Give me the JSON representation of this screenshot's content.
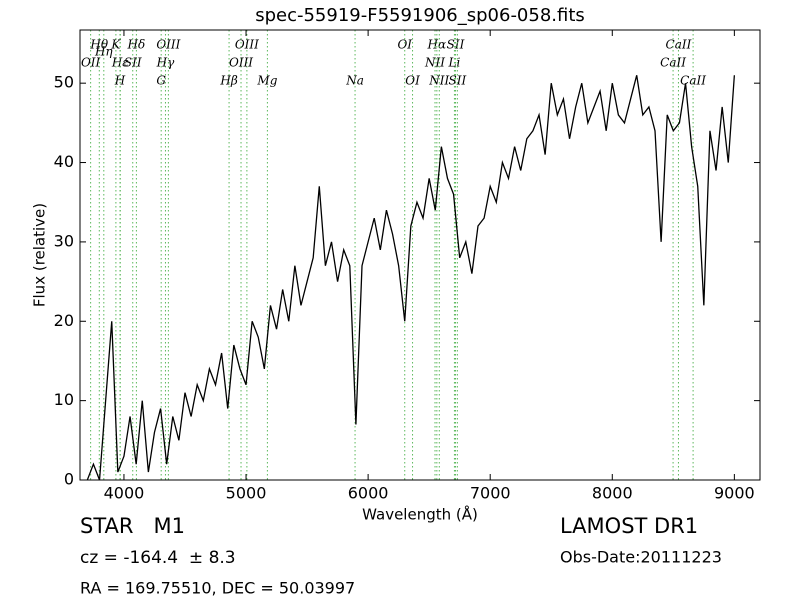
{
  "chart_data": {
    "type": "line",
    "title": "spec-55919-F5591906_sp06-058.fits",
    "x_label": "Wavelength (Å)",
    "y_label": "Flux (relative)",
    "xlim": [
      3640,
      9210
    ],
    "ylim": [
      0,
      56.7
    ],
    "xticks": [
      4000,
      5000,
      6000,
      7000,
      8000,
      9000
    ],
    "yticks": [
      0,
      10,
      20,
      30,
      40,
      50
    ],
    "x": [
      3700,
      3750,
      3800,
      3850,
      3900,
      3950,
      4000,
      4050,
      4100,
      4150,
      4200,
      4250,
      4300,
      4350,
      4400,
      4450,
      4500,
      4550,
      4600,
      4650,
      4700,
      4750,
      4800,
      4850,
      4900,
      4950,
      5000,
      5050,
      5100,
      5150,
      5200,
      5250,
      5300,
      5350,
      5400,
      5450,
      5500,
      5550,
      5600,
      5650,
      5700,
      5750,
      5800,
      5850,
      5900,
      5950,
      6000,
      6050,
      6100,
      6150,
      6200,
      6250,
      6300,
      6350,
      6400,
      6450,
      6500,
      6550,
      6600,
      6650,
      6700,
      6750,
      6800,
      6850,
      6900,
      6950,
      7000,
      7050,
      7100,
      7150,
      7200,
      7250,
      7300,
      7350,
      7400,
      7450,
      7500,
      7550,
      7600,
      7650,
      7700,
      7750,
      7800,
      7850,
      7900,
      7950,
      8000,
      8050,
      8100,
      8150,
      8200,
      8250,
      8300,
      8350,
      8400,
      8450,
      8500,
      8550,
      8600,
      8650,
      8700,
      8750,
      8800,
      8850,
      8900,
      8950,
      9000
    ],
    "series": [
      {
        "color": "#000000",
        "values": [
          0,
          2,
          0,
          10,
          20,
          1,
          3,
          8,
          2,
          10,
          1,
          6,
          9,
          2,
          8,
          5,
          11,
          8,
          12,
          10,
          14,
          12,
          16,
          9,
          17,
          14,
          12,
          20,
          18,
          14,
          22,
          19,
          24,
          20,
          27,
          22,
          25,
          28,
          37,
          27,
          30,
          25,
          29,
          27,
          7,
          27,
          30,
          33,
          29,
          34,
          31,
          27,
          20,
          32,
          35,
          33,
          38,
          34,
          42,
          38,
          36,
          28,
          30,
          26,
          32,
          33,
          37,
          35,
          40,
          38,
          42,
          39,
          43,
          44,
          46,
          41,
          50,
          46,
          48,
          43,
          47,
          50,
          45,
          47,
          49,
          44,
          50,
          46,
          45,
          48,
          51,
          46,
          47,
          44,
          30,
          46,
          44,
          45,
          50,
          42,
          37,
          22,
          44,
          39,
          47,
          40,
          51
        ]
      }
    ],
    "lines_color": "#5cb85c",
    "lines": [
      {
        "name": "Hθ",
        "wavelength": 3798
      },
      {
        "name": "K",
        "wavelength": 3934
      },
      {
        "name": "Hδ",
        "wavelength": 4102
      },
      {
        "name": "OIII",
        "wavelength": 4364
      },
      {
        "name": "OIII",
        "wavelength": 5007
      },
      {
        "name": "OI",
        "wavelength": 6300
      },
      {
        "name": "Hα",
        "wavelength": 6563
      },
      {
        "name": "SII",
        "wavelength": 6716
      },
      {
        "name": "CaII",
        "wavelength": 8542
      },
      {
        "name": "OII",
        "wavelength": 3727
      },
      {
        "name": "Hε",
        "wavelength": 3970
      },
      {
        "name": "SII",
        "wavelength": 4072
      },
      {
        "name": "Hγ",
        "wavelength": 4340
      },
      {
        "name": "OIII",
        "wavelength": 4959
      },
      {
        "name": "NII",
        "wavelength": 6548
      },
      {
        "name": "Li",
        "wavelength": 6707
      },
      {
        "name": "CaII",
        "wavelength": 8498
      },
      {
        "name": "Hη",
        "wavelength": 3835
      },
      {
        "name": "H",
        "wavelength": 3968
      },
      {
        "name": "G",
        "wavelength": 4305
      },
      {
        "name": "Hβ",
        "wavelength": 4861
      },
      {
        "name": "Mg",
        "wavelength": 5175
      },
      {
        "name": "Na",
        "wavelength": 5893
      },
      {
        "name": "OI",
        "wavelength": 6364
      },
      {
        "name": "NII",
        "wavelength": 6583
      },
      {
        "name": "SII",
        "wavelength": 6731
      },
      {
        "name": "CaII",
        "wavelength": 8662
      }
    ],
    "object_class": "STAR   M1",
    "survey": "LAMOST DR1",
    "redshift": "cz = -164.4  ± 8.3",
    "obs_date": "Obs-Date:20111223",
    "coords": "RA = 169.75510, DEC = 50.03997"
  }
}
